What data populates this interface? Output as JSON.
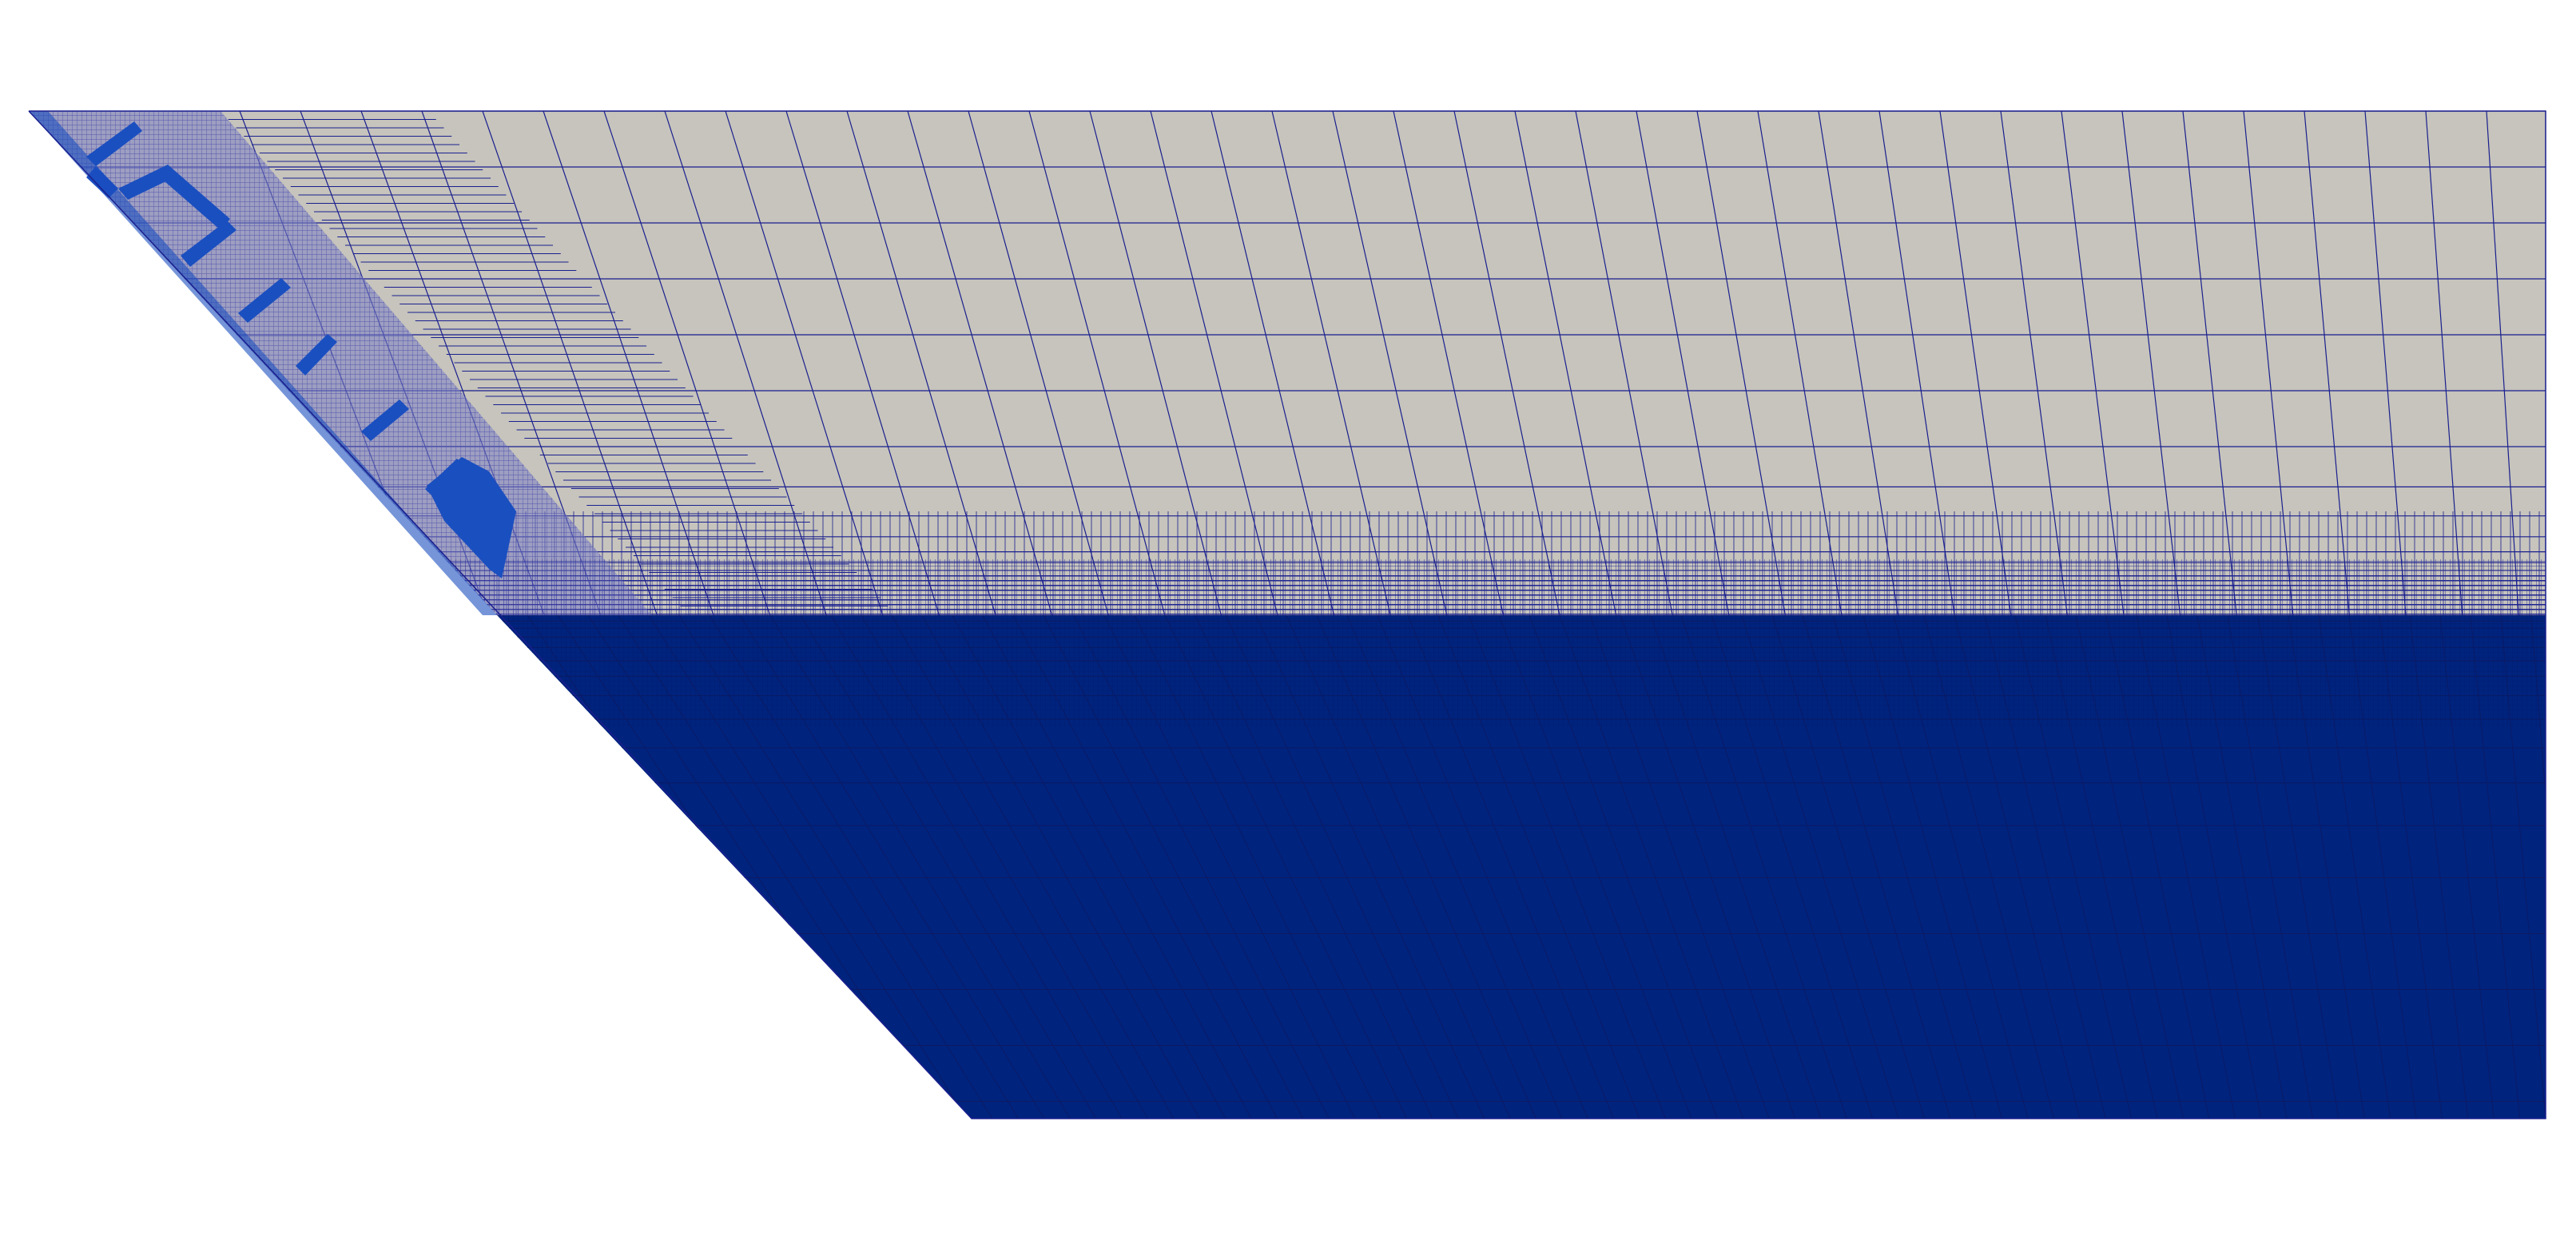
{
  "colors": {
    "background": "#ffffff",
    "upper_region_fill": "#c6c4bc",
    "lower_region_fill": "#00237e",
    "mesh_line": "#1a1f8e",
    "refinement_band": "#7b7fc4",
    "structure_fill": "#1a4fc0"
  }
}
